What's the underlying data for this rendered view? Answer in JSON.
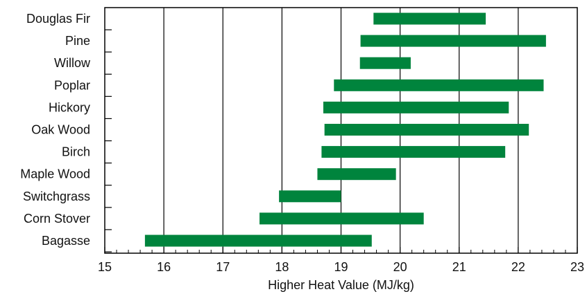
{
  "chart_data": {
    "type": "bar",
    "orientation": "horizontal",
    "range_bars": true,
    "categories": [
      "Douglas Fir",
      "Pine",
      "Willow",
      "Poplar",
      "Hickory",
      "Oak Wood",
      "Birch",
      "Maple Wood",
      "Switchgrass",
      "Corn Stover",
      "Bagasse"
    ],
    "ranges": [
      [
        19.55,
        21.45
      ],
      [
        19.33,
        22.47
      ],
      [
        19.32,
        20.18
      ],
      [
        18.88,
        22.43
      ],
      [
        18.7,
        21.84
      ],
      [
        18.72,
        22.18
      ],
      [
        18.67,
        21.78
      ],
      [
        18.6,
        19.93
      ],
      [
        17.95,
        19.0
      ],
      [
        17.62,
        20.4
      ],
      [
        15.68,
        19.52
      ]
    ],
    "xlabel": "Higher Heat Value (MJ/kg)",
    "xlim": [
      15,
      23
    ],
    "xticks": [
      "15",
      "16",
      "17",
      "18",
      "19",
      "20",
      "21",
      "22",
      "23"
    ],
    "grid": "vertical major gridlines",
    "bar_color": "#00843d"
  }
}
